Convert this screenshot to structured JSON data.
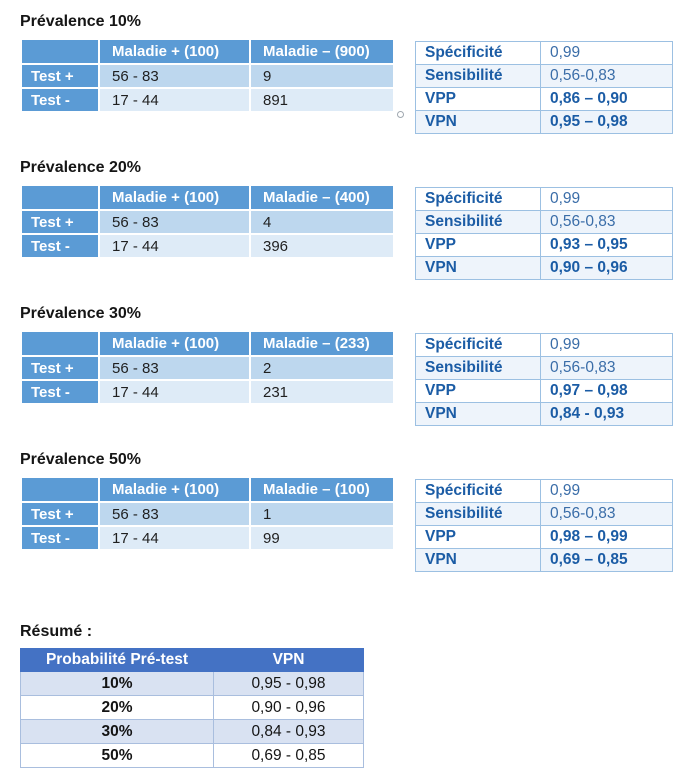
{
  "colors": {
    "table_header_blue": "#5b9bd5",
    "row_medium_blue": "#bdd7ee",
    "row_light_blue": "#deebf7",
    "metric_text_blue": "#1b5ca5",
    "summary_header_blue": "#4472c4",
    "summary_band_blue": "#d9e2f2"
  },
  "sections": [
    {
      "title": "Prévalence 10%",
      "contingency": {
        "col_headers": [
          "",
          "Maladie + (100)",
          "Maladie – (900)"
        ],
        "rows": [
          {
            "label": "Test +",
            "values": [
              "56 - 83",
              "9"
            ]
          },
          {
            "label": "Test -",
            "values": [
              "17 - 44",
              "891"
            ]
          }
        ]
      },
      "metrics": [
        {
          "label": "Spécificité",
          "value": "0,99"
        },
        {
          "label": "Sensibilité",
          "value": "0,56-0,83"
        },
        {
          "label": "VPP",
          "value": "0,86 – 0,90"
        },
        {
          "label": "VPN",
          "value": "0,95 – 0,98"
        }
      ]
    },
    {
      "title": "Prévalence 20%",
      "contingency": {
        "col_headers": [
          "",
          "Maladie + (100)",
          "Maladie – (400)"
        ],
        "rows": [
          {
            "label": "Test +",
            "values": [
              "56 - 83",
              "4"
            ]
          },
          {
            "label": "Test -",
            "values": [
              "17 - 44",
              "396"
            ]
          }
        ]
      },
      "metrics": [
        {
          "label": "Spécificité",
          "value": "0,99"
        },
        {
          "label": "Sensibilité",
          "value": "0,56-0,83"
        },
        {
          "label": "VPP",
          "value": "0,93 – 0,95"
        },
        {
          "label": "VPN",
          "value": "0,90 – 0,96"
        }
      ]
    },
    {
      "title": "Prévalence 30%",
      "contingency": {
        "col_headers": [
          "",
          "Maladie + (100)",
          "Maladie – (233)"
        ],
        "rows": [
          {
            "label": "Test +",
            "values": [
              "56 - 83",
              "2"
            ]
          },
          {
            "label": "Test -",
            "values": [
              "17 - 44",
              "231"
            ]
          }
        ]
      },
      "metrics": [
        {
          "label": "Spécificité",
          "value": "0,99"
        },
        {
          "label": "Sensibilité",
          "value": "0,56-0,83"
        },
        {
          "label": "VPP",
          "value": "0,97 – 0,98"
        },
        {
          "label": "VPN",
          "value": "0,84 - 0,93"
        }
      ]
    },
    {
      "title": "Prévalence 50%",
      "contingency": {
        "col_headers": [
          "",
          "Maladie + (100)",
          "Maladie – (100)"
        ],
        "rows": [
          {
            "label": "Test +",
            "values": [
              "56 - 83",
              "1"
            ]
          },
          {
            "label": "Test -",
            "values": [
              "17 - 44",
              "99"
            ]
          }
        ]
      },
      "metrics": [
        {
          "label": "Spécificité",
          "value": "0,99"
        },
        {
          "label": "Sensibilité",
          "value": "0,56-0,83"
        },
        {
          "label": "VPP",
          "value": "0,98 – 0,99"
        },
        {
          "label": "VPN",
          "value": "0,69 – 0,85"
        }
      ]
    }
  ],
  "summary": {
    "title": "Résumé :",
    "headers": [
      "Probabilité Pré-test",
      "VPN"
    ],
    "rows": [
      {
        "pretest": "10%",
        "vpn": "0,95 - 0,98"
      },
      {
        "pretest": "20%",
        "vpn": "0,90 - 0,96"
      },
      {
        "pretest": "30%",
        "vpn": "0,84 - 0,93"
      },
      {
        "pretest": "50%",
        "vpn": "0,69 - 0,85"
      }
    ]
  }
}
